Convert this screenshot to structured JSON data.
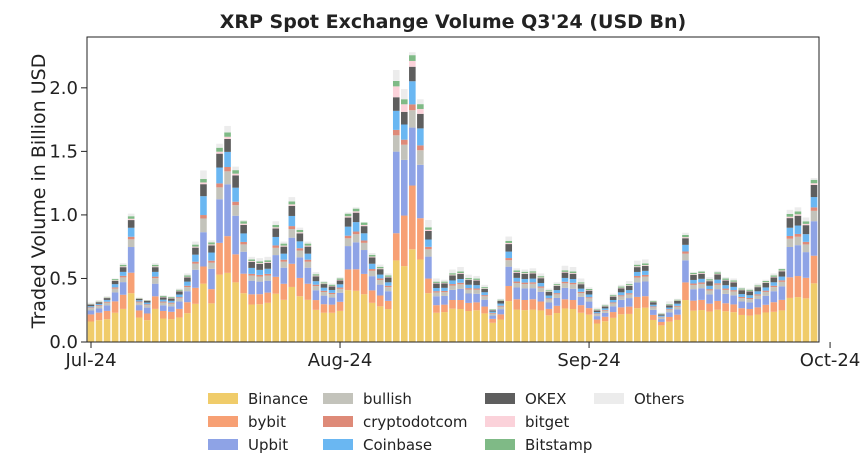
{
  "chart_data": {
    "type": "bar",
    "stacked": true,
    "title": "XRP Spot Exchange Volume Q3'24 (USD Bn)",
    "xlabel": "",
    "ylabel": "Traded Volume in Billion USD",
    "ylim": [
      0,
      2.4
    ],
    "yticks": [
      0.0,
      0.5,
      1.0,
      1.5,
      2.0
    ],
    "ytick_labels": [
      "0.0",
      "0.5",
      "1.0",
      "1.5",
      "2.0"
    ],
    "x_start": "2024-07-01",
    "xticks": [
      "2024-07-01",
      "2024-08-01",
      "2024-09-01",
      "2024-10-01"
    ],
    "xtick_labels": [
      "Jul-24",
      "Aug-24",
      "Sep-24",
      "Oct-24"
    ],
    "grid": false,
    "legend_position": "bottom",
    "series": [
      {
        "name": "Binance",
        "color": "#f0cc6a"
      },
      {
        "name": "bybit",
        "color": "#f7a074"
      },
      {
        "name": "Upbit",
        "color": "#8ea3e6"
      },
      {
        "name": "bullish",
        "color": "#c3c3bb"
      },
      {
        "name": "cryptodotcom",
        "color": "#de8a78"
      },
      {
        "name": "Coinbase",
        "color": "#6ab7f2"
      },
      {
        "name": "OKEX",
        "color": "#5e5e5e"
      },
      {
        "name": "bitget",
        "color": "#fbd2da"
      },
      {
        "name": "Bitstamp",
        "color": "#7fba86"
      },
      {
        "name": "Others",
        "color": "#ececec"
      }
    ],
    "totals": [
      0.31,
      0.33,
      0.36,
      0.5,
      0.62,
      1.01,
      0.35,
      0.33,
      0.62,
      0.37,
      0.36,
      0.42,
      0.54,
      0.79,
      1.35,
      0.8,
      1.56,
      1.7,
      1.38,
      0.96,
      0.67,
      0.66,
      0.67,
      0.95,
      0.79,
      1.14,
      0.9,
      0.79,
      0.55,
      0.48,
      0.46,
      0.51,
      1.02,
      1.06,
      0.94,
      0.7,
      0.61,
      0.54,
      2.14,
      1.99,
      2.28,
      1.91,
      0.96,
      0.5,
      0.49,
      0.57,
      0.59,
      0.53,
      0.52,
      0.45,
      0.26,
      0.34,
      0.83,
      0.58,
      0.57,
      0.58,
      0.54,
      0.42,
      0.47,
      0.6,
      0.59,
      0.5,
      0.43,
      0.27,
      0.3,
      0.38,
      0.45,
      0.48,
      0.64,
      0.65,
      0.33,
      0.23,
      0.32,
      0.34,
      0.86,
      0.55,
      0.56,
      0.51,
      0.56,
      0.51,
      0.5,
      0.43,
      0.42,
      0.46,
      0.49,
      0.54,
      0.58,
      1.04,
      1.06,
      0.98,
      1.29
    ],
    "shares": {
      "Binance": [
        0.52,
        0.52,
        0.5,
        0.46,
        0.42,
        0.38,
        0.55,
        0.52,
        0.42,
        0.5,
        0.5,
        0.46,
        0.42,
        0.38,
        0.34,
        0.38,
        0.34,
        0.32,
        0.34,
        0.4,
        0.44,
        0.45,
        0.46,
        0.4,
        0.42,
        0.38,
        0.4,
        0.42,
        0.46,
        0.48,
        0.5,
        0.48,
        0.4,
        0.38,
        0.4,
        0.44,
        0.46,
        0.48,
        0.3,
        0.3,
        0.32,
        0.34,
        0.4,
        0.46,
        0.48,
        0.46,
        0.44,
        0.46,
        0.48,
        0.5,
        0.58,
        0.52,
        0.38,
        0.44,
        0.44,
        0.44,
        0.46,
        0.5,
        0.48,
        0.44,
        0.44,
        0.46,
        0.5,
        0.55,
        0.55,
        0.5,
        0.48,
        0.46,
        0.42,
        0.42,
        0.52,
        0.58,
        0.52,
        0.5,
        0.38,
        0.44,
        0.44,
        0.46,
        0.44,
        0.46,
        0.46,
        0.48,
        0.48,
        0.46,
        0.46,
        0.44,
        0.42,
        0.32,
        0.32,
        0.34,
        0.34
      ],
      "bybit": [
        0.18,
        0.18,
        0.18,
        0.18,
        0.18,
        0.16,
        0.16,
        0.16,
        0.16,
        0.16,
        0.16,
        0.16,
        0.16,
        0.16,
        0.1,
        0.14,
        0.16,
        0.17,
        0.16,
        0.16,
        0.12,
        0.12,
        0.12,
        0.14,
        0.16,
        0.16,
        0.16,
        0.16,
        0.14,
        0.14,
        0.14,
        0.14,
        0.16,
        0.16,
        0.17,
        0.14,
        0.14,
        0.12,
        0.1,
        0.2,
        0.22,
        0.17,
        0.12,
        0.12,
        0.12,
        0.12,
        0.12,
        0.12,
        0.12,
        0.12,
        0.12,
        0.12,
        0.14,
        0.14,
        0.14,
        0.14,
        0.13,
        0.12,
        0.12,
        0.12,
        0.12,
        0.12,
        0.12,
        0.12,
        0.12,
        0.12,
        0.12,
        0.12,
        0.14,
        0.14,
        0.12,
        0.12,
        0.12,
        0.12,
        0.16,
        0.14,
        0.14,
        0.12,
        0.12,
        0.12,
        0.12,
        0.12,
        0.12,
        0.12,
        0.12,
        0.14,
        0.14,
        0.15,
        0.15,
        0.16,
        0.16
      ],
      "Upbit": [
        0.1,
        0.1,
        0.12,
        0.14,
        0.16,
        0.2,
        0.12,
        0.14,
        0.16,
        0.12,
        0.12,
        0.14,
        0.16,
        0.18,
        0.2,
        0.2,
        0.22,
        0.24,
        0.22,
        0.18,
        0.16,
        0.15,
        0.14,
        0.18,
        0.16,
        0.18,
        0.18,
        0.16,
        0.14,
        0.14,
        0.12,
        0.14,
        0.18,
        0.2,
        0.2,
        0.16,
        0.14,
        0.14,
        0.3,
        0.22,
        0.2,
        0.22,
        0.18,
        0.14,
        0.14,
        0.14,
        0.15,
        0.14,
        0.13,
        0.12,
        0.1,
        0.12,
        0.18,
        0.16,
        0.16,
        0.15,
        0.14,
        0.12,
        0.13,
        0.15,
        0.15,
        0.13,
        0.12,
        0.1,
        0.1,
        0.12,
        0.13,
        0.14,
        0.18,
        0.18,
        0.12,
        0.1,
        0.12,
        0.12,
        0.2,
        0.16,
        0.16,
        0.14,
        0.16,
        0.14,
        0.14,
        0.12,
        0.12,
        0.14,
        0.14,
        0.16,
        0.18,
        0.22,
        0.22,
        0.2,
        0.2
      ],
      "bullish": [
        0.06,
        0.06,
        0.06,
        0.06,
        0.06,
        0.06,
        0.06,
        0.06,
        0.07,
        0.06,
        0.06,
        0.06,
        0.06,
        0.06,
        0.08,
        0.06,
        0.06,
        0.06,
        0.06,
        0.06,
        0.06,
        0.06,
        0.06,
        0.06,
        0.06,
        0.06,
        0.06,
        0.06,
        0.06,
        0.06,
        0.06,
        0.06,
        0.06,
        0.06,
        0.06,
        0.06,
        0.06,
        0.06,
        0.06,
        0.06,
        0.06,
        0.06,
        0.06,
        0.06,
        0.06,
        0.06,
        0.06,
        0.06,
        0.06,
        0.06,
        0.06,
        0.06,
        0.06,
        0.06,
        0.06,
        0.06,
        0.06,
        0.06,
        0.06,
        0.06,
        0.06,
        0.06,
        0.06,
        0.06,
        0.06,
        0.06,
        0.06,
        0.06,
        0.06,
        0.06,
        0.06,
        0.06,
        0.06,
        0.06,
        0.06,
        0.06,
        0.06,
        0.06,
        0.06,
        0.06,
        0.06,
        0.06,
        0.06,
        0.06,
        0.06,
        0.06,
        0.06,
        0.06,
        0.06,
        0.06,
        0.06
      ],
      "cryptodotcom": [
        0.02,
        0.02,
        0.02,
        0.02,
        0.02,
        0.02,
        0.02,
        0.02,
        0.02,
        0.02,
        0.02,
        0.02,
        0.02,
        0.02,
        0.02,
        0.02,
        0.02,
        0.02,
        0.02,
        0.02,
        0.02,
        0.02,
        0.02,
        0.02,
        0.02,
        0.02,
        0.02,
        0.02,
        0.02,
        0.02,
        0.02,
        0.02,
        0.02,
        0.02,
        0.02,
        0.02,
        0.02,
        0.02,
        0.02,
        0.02,
        0.02,
        0.02,
        0.02,
        0.02,
        0.02,
        0.02,
        0.02,
        0.02,
        0.02,
        0.02,
        0.02,
        0.02,
        0.02,
        0.02,
        0.02,
        0.02,
        0.02,
        0.02,
        0.02,
        0.02,
        0.02,
        0.02,
        0.02,
        0.02,
        0.02,
        0.02,
        0.02,
        0.02,
        0.02,
        0.02,
        0.02,
        0.02,
        0.02,
        0.02,
        0.02,
        0.02,
        0.02,
        0.02,
        0.02,
        0.02,
        0.02,
        0.02,
        0.02,
        0.02,
        0.02,
        0.02,
        0.02,
        0.02,
        0.02,
        0.02,
        0.02
      ],
      "Coinbase": [
        0.03,
        0.03,
        0.04,
        0.05,
        0.05,
        0.07,
        0.03,
        0.04,
        0.06,
        0.04,
        0.04,
        0.05,
        0.06,
        0.07,
        0.11,
        0.08,
        0.08,
        0.07,
        0.08,
        0.07,
        0.07,
        0.06,
        0.06,
        0.07,
        0.06,
        0.07,
        0.06,
        0.06,
        0.05,
        0.05,
        0.05,
        0.05,
        0.07,
        0.07,
        0.06,
        0.06,
        0.05,
        0.05,
        0.07,
        0.06,
        0.08,
        0.07,
        0.06,
        0.05,
        0.05,
        0.05,
        0.05,
        0.05,
        0.05,
        0.05,
        0.04,
        0.05,
        0.06,
        0.05,
        0.05,
        0.05,
        0.05,
        0.05,
        0.05,
        0.05,
        0.05,
        0.05,
        0.05,
        0.04,
        0.04,
        0.05,
        0.05,
        0.05,
        0.05,
        0.05,
        0.04,
        0.04,
        0.04,
        0.05,
        0.06,
        0.05,
        0.05,
        0.05,
        0.05,
        0.05,
        0.05,
        0.05,
        0.05,
        0.05,
        0.05,
        0.05,
        0.05,
        0.06,
        0.06,
        0.06,
        0.06
      ],
      "OKEX": [
        0.04,
        0.04,
        0.04,
        0.05,
        0.06,
        0.06,
        0.03,
        0.04,
        0.06,
        0.05,
        0.05,
        0.06,
        0.06,
        0.07,
        0.07,
        0.07,
        0.07,
        0.06,
        0.07,
        0.07,
        0.07,
        0.07,
        0.07,
        0.07,
        0.07,
        0.07,
        0.07,
        0.07,
        0.07,
        0.06,
        0.06,
        0.06,
        0.07,
        0.07,
        0.06,
        0.07,
        0.07,
        0.07,
        0.05,
        0.05,
        0.05,
        0.06,
        0.07,
        0.07,
        0.07,
        0.07,
        0.07,
        0.07,
        0.07,
        0.06,
        0.04,
        0.06,
        0.07,
        0.07,
        0.07,
        0.07,
        0.07,
        0.07,
        0.07,
        0.07,
        0.07,
        0.07,
        0.07,
        0.05,
        0.05,
        0.07,
        0.07,
        0.07,
        0.06,
        0.06,
        0.06,
        0.04,
        0.06,
        0.06,
        0.06,
        0.07,
        0.07,
        0.07,
        0.07,
        0.07,
        0.07,
        0.07,
        0.07,
        0.07,
        0.07,
        0.07,
        0.07,
        0.07,
        0.07,
        0.07,
        0.07
      ],
      "bitget": [
        0.01,
        0.01,
        0.01,
        0.01,
        0.01,
        0.01,
        0.01,
        0.01,
        0.01,
        0.01,
        0.01,
        0.01,
        0.01,
        0.01,
        0.01,
        0.01,
        0.01,
        0.01,
        0.01,
        0.01,
        0.01,
        0.01,
        0.01,
        0.01,
        0.01,
        0.01,
        0.01,
        0.01,
        0.01,
        0.01,
        0.01,
        0.01,
        0.01,
        0.01,
        0.01,
        0.01,
        0.01,
        0.01,
        0.04,
        0.03,
        0.02,
        0.02,
        0.01,
        0.01,
        0.01,
        0.01,
        0.01,
        0.01,
        0.01,
        0.01,
        0.01,
        0.01,
        0.01,
        0.01,
        0.01,
        0.01,
        0.01,
        0.01,
        0.01,
        0.01,
        0.01,
        0.01,
        0.01,
        0.01,
        0.01,
        0.01,
        0.01,
        0.01,
        0.01,
        0.01,
        0.01,
        0.01,
        0.01,
        0.01,
        0.01,
        0.01,
        0.01,
        0.01,
        0.01,
        0.01,
        0.01,
        0.01,
        0.01,
        0.01,
        0.01,
        0.01,
        0.01,
        0.01,
        0.01,
        0.01,
        0.01
      ],
      "Bitstamp": [
        0.01,
        0.01,
        0.01,
        0.02,
        0.02,
        0.02,
        0.01,
        0.01,
        0.02,
        0.02,
        0.02,
        0.02,
        0.02,
        0.02,
        0.02,
        0.02,
        0.02,
        0.02,
        0.02,
        0.02,
        0.02,
        0.02,
        0.02,
        0.02,
        0.02,
        0.02,
        0.02,
        0.02,
        0.02,
        0.02,
        0.02,
        0.02,
        0.02,
        0.02,
        0.02,
        0.02,
        0.02,
        0.02,
        0.02,
        0.02,
        0.02,
        0.02,
        0.02,
        0.02,
        0.02,
        0.02,
        0.02,
        0.02,
        0.02,
        0.02,
        0.02,
        0.02,
        0.02,
        0.02,
        0.02,
        0.02,
        0.02,
        0.02,
        0.02,
        0.02,
        0.02,
        0.02,
        0.02,
        0.02,
        0.02,
        0.02,
        0.02,
        0.02,
        0.02,
        0.02,
        0.02,
        0.02,
        0.02,
        0.02,
        0.02,
        0.02,
        0.02,
        0.02,
        0.02,
        0.02,
        0.02,
        0.02,
        0.02,
        0.02,
        0.02,
        0.02,
        0.02,
        0.02,
        0.02,
        0.02,
        0.02
      ],
      "Others": [
        0.03,
        0.03,
        0.02,
        0.01,
        0.02,
        0.02,
        0.01,
        0.0,
        0.02,
        0.02,
        0.02,
        0.02,
        0.03,
        0.03,
        0.05,
        0.02,
        0.02,
        0.03,
        0.02,
        0.01,
        0.03,
        0.04,
        0.04,
        0.03,
        0.02,
        0.03,
        0.02,
        0.02,
        0.03,
        0.02,
        0.02,
        0.02,
        0.01,
        0.01,
        0.0,
        0.02,
        0.03,
        0.03,
        0.04,
        0.04,
        0.01,
        0.02,
        0.06,
        0.05,
        0.03,
        0.05,
        0.06,
        0.05,
        0.04,
        0.04,
        0.01,
        0.02,
        0.04,
        0.03,
        0.03,
        0.04,
        0.04,
        0.03,
        0.03,
        0.06,
        0.06,
        0.06,
        0.03,
        0.05,
        0.04,
        0.03,
        0.03,
        0.05,
        0.05,
        0.05,
        0.02,
        0.03,
        0.07,
        0.02,
        0.02,
        0.01,
        0.01,
        0.03,
        0.02,
        0.02,
        0.03,
        0.02,
        0.02,
        0.03,
        0.02,
        0.03,
        0.01,
        0.03,
        0.03,
        0.03,
        0.01
      ]
    }
  }
}
